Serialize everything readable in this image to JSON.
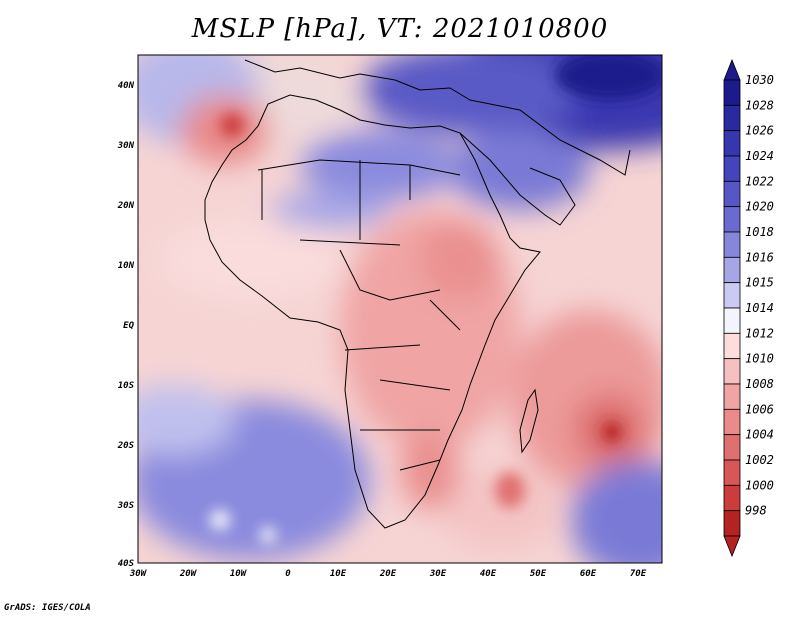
{
  "map": {
    "title": "MSLP [hPa], VT: 2021010800",
    "variable": "MSLP",
    "units": "hPa",
    "valid_time": "2021010800",
    "credit": "GrADS: IGES/COLA",
    "lon_ticks": [
      "30W",
      "20W",
      "10W",
      "0",
      "10E",
      "20E",
      "30E",
      "40E",
      "50E",
      "60E",
      "70E"
    ],
    "lat_ticks": [
      "40N",
      "30N",
      "20N",
      "10N",
      "EQ",
      "10S",
      "20S",
      "30S",
      "40S"
    ]
  },
  "colorbar": {
    "levels": [
      {
        "label": "1030",
        "color": "#1c1a8c"
      },
      {
        "label": "1028",
        "color": "#2a2aa0"
      },
      {
        "label": "1026",
        "color": "#3636ae"
      },
      {
        "label": "1024",
        "color": "#4444bc"
      },
      {
        "label": "1022",
        "color": "#5656c6"
      },
      {
        "label": "1020",
        "color": "#6a6ad0"
      },
      {
        "label": "1018",
        "color": "#8686da"
      },
      {
        "label": "1016",
        "color": "#a6a6e6"
      },
      {
        "label": "1015",
        "color": "#cacaf2"
      },
      {
        "label": "1014",
        "color": "#f4f4fc"
      },
      {
        "label": "1012",
        "color": "#fcdcdc"
      },
      {
        "label": "1010",
        "color": "#f6c0c0"
      },
      {
        "label": "1008",
        "color": "#f0a4a4"
      },
      {
        "label": "1006",
        "color": "#ea8a8a"
      },
      {
        "label": "1004",
        "color": "#e07070"
      },
      {
        "label": "1002",
        "color": "#d85656"
      },
      {
        "label": "1000",
        "color": "#cc3c3c"
      },
      {
        "label": "998",
        "color": "#b42222"
      }
    ]
  }
}
